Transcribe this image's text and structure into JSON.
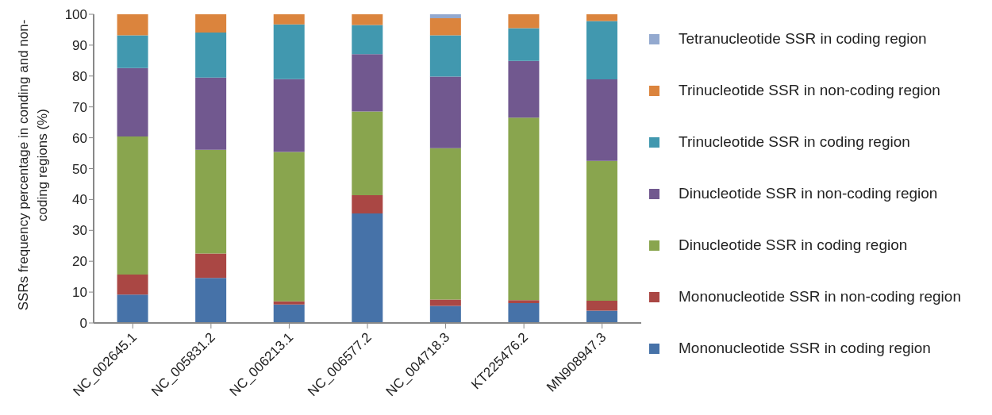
{
  "chart_data": {
    "type": "bar",
    "stacked": true,
    "ylabel": "SSRs frequency percentage in conding and non-coding regions (%)",
    "categories": [
      "NC_002645.1",
      "NC_005831.2",
      "NC_006213.1",
      "NC_006577.2",
      "NC_004718.3",
      "KT225476.2",
      "MN908947.3"
    ],
    "series": [
      {
        "name": "Mononucleotide SSR in coding region",
        "color": "#4672a8",
        "values": [
          9.2,
          14.6,
          6.0,
          35.5,
          5.5,
          6.4,
          4.0
        ]
      },
      {
        "name": "Mononucleotide SSR in non-coding region",
        "color": "#aa4744",
        "values": [
          6.5,
          7.9,
          1.0,
          5.9,
          2.1,
          1.0,
          3.2
        ]
      },
      {
        "name": "Dinucleotide SSR in coding region",
        "color": "#89a54e",
        "values": [
          44.7,
          33.6,
          48.4,
          27.1,
          49.0,
          59.1,
          45.3
        ]
      },
      {
        "name": "Dinucleotide SSR in non-coding region",
        "color": "#71588f",
        "values": [
          22.2,
          23.4,
          23.6,
          18.6,
          23.2,
          18.4,
          26.4
        ]
      },
      {
        "name": "Trinucleotide SSR in coding region",
        "color": "#4198af",
        "values": [
          10.6,
          14.6,
          17.7,
          9.4,
          13.4,
          10.6,
          18.9
        ]
      },
      {
        "name": "Trinucleotide SSR in non-coding region",
        "color": "#db843d",
        "values": [
          6.8,
          5.9,
          3.3,
          3.5,
          5.5,
          4.5,
          2.2
        ]
      },
      {
        "name": "Tetranucleotide SSR in coding region",
        "color": "#93a9cf",
        "values": [
          0,
          0,
          0,
          0,
          1.3,
          0,
          0
        ]
      }
    ],
    "ylim": [
      0,
      100
    ],
    "yticks": [
      0,
      10,
      20,
      30,
      40,
      50,
      60,
      70,
      80,
      90,
      100
    ],
    "grid": false,
    "legend": "right"
  }
}
